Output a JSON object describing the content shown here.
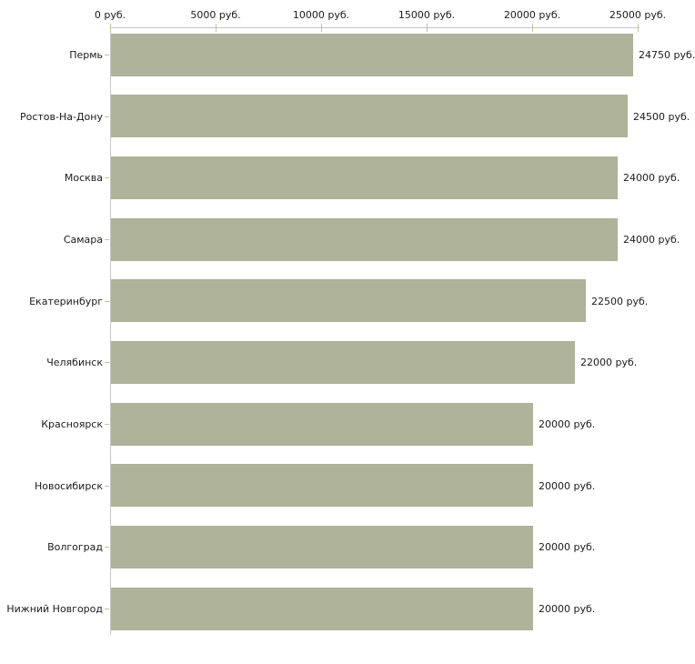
{
  "chart_data": {
    "type": "bar",
    "orientation": "horizontal",
    "title": "",
    "categories": [
      "Пермь",
      "Ростов-На-Дону",
      "Москва",
      "Самара",
      "Екатеринбург",
      "Челябинск",
      "Красноярск",
      "Новосибирск",
      "Волгоград",
      "Нижний Новгород"
    ],
    "values": [
      24750,
      24500,
      24000,
      24000,
      22500,
      22000,
      20000,
      20000,
      20000,
      20000
    ],
    "bar_value_labels": [
      "24750 руб.",
      "24500 руб.",
      "24000 руб.",
      "24000 руб.",
      "22500 руб.",
      "22000 руб.",
      "20000 руб.",
      "20000 руб.",
      "20000 руб.",
      "20000 руб."
    ],
    "x_axis": {
      "position": "top",
      "tick_values": [
        0,
        5000,
        10000,
        15000,
        20000,
        25000
      ],
      "tick_labels": [
        "0 руб.",
        "5000 руб.",
        "10000 руб.",
        "15000 руб.",
        "20000 руб.",
        "25000 руб."
      ],
      "range": [
        0,
        25000
      ],
      "unit": "руб."
    },
    "ylabel": "",
    "xlabel": "",
    "legend": "none",
    "grid": false
  },
  "colors": {
    "bar_fill": "#aeb399",
    "axis_line": "#c6c6c6",
    "axis_tick": "#c5c19a",
    "category_tick": "#c5c19a",
    "text": "#1b1b1b",
    "background": "#ffffff"
  }
}
